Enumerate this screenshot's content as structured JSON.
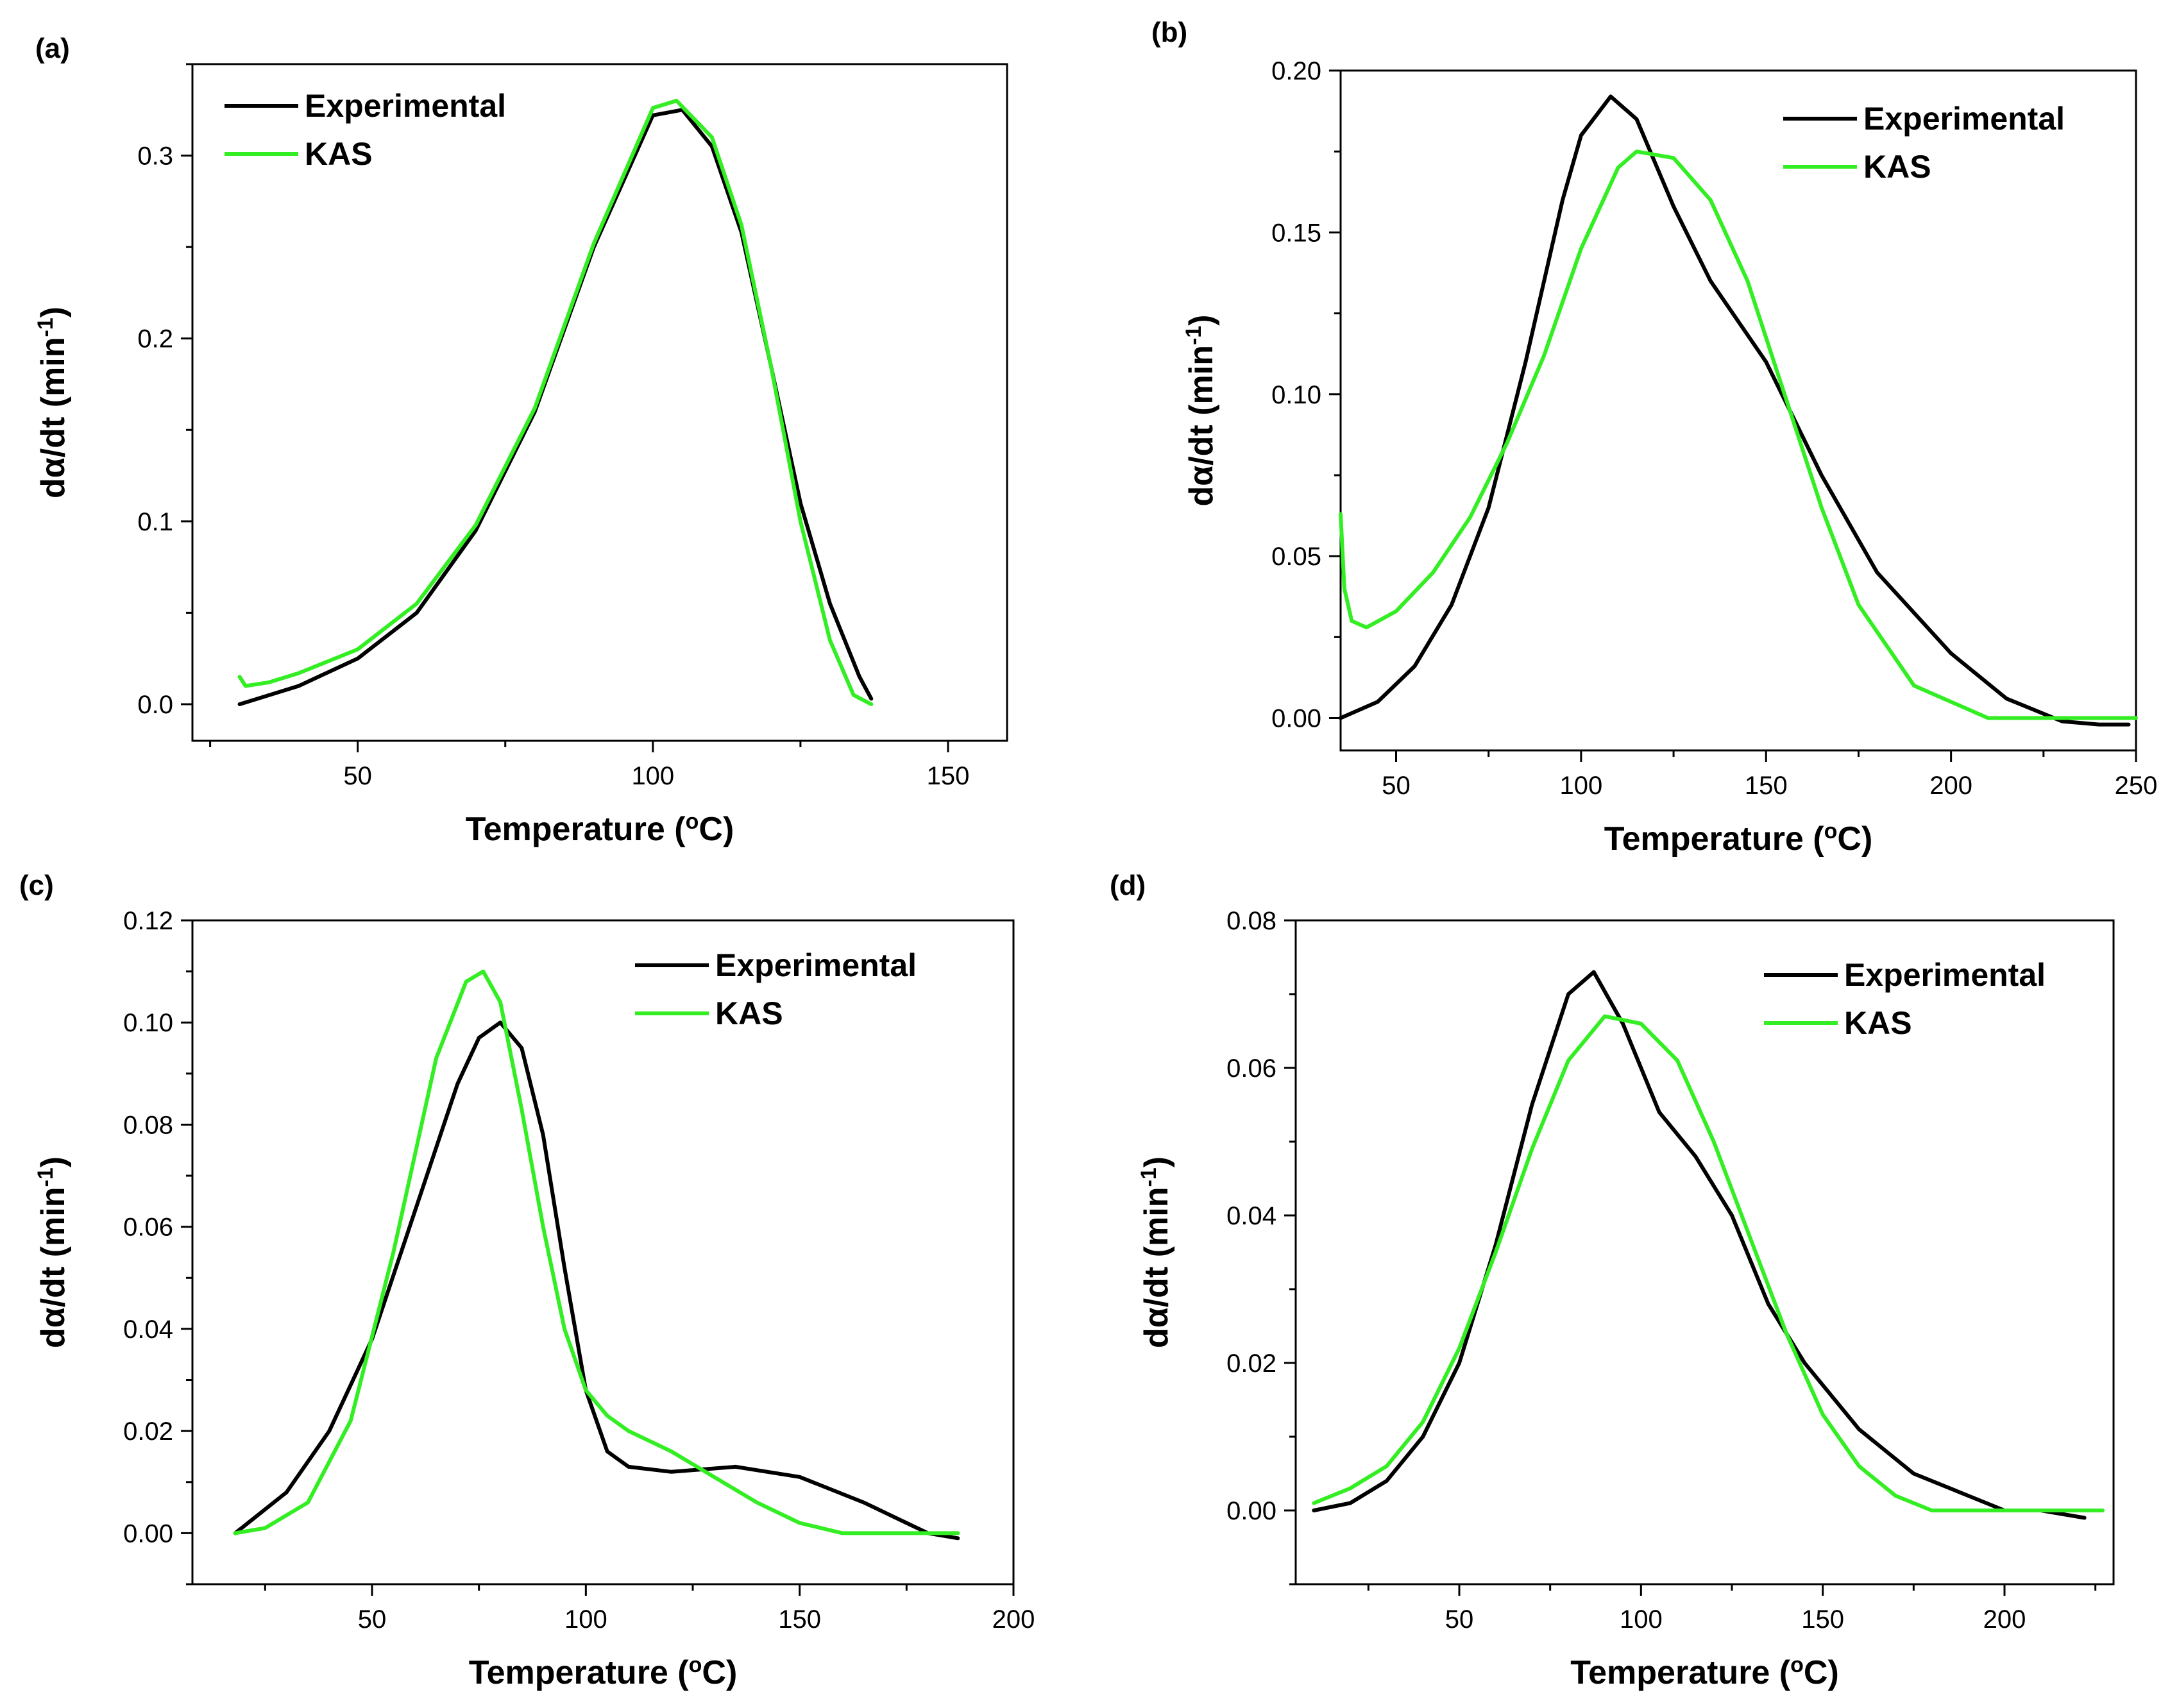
{
  "figure": {
    "panels": [
      {
        "id": "a",
        "label": "(a)",
        "xlabel_main": "Temperature (",
        "xlabel_sup": "o",
        "xlabel_end": "C)",
        "ylabel_main": "dα/dt (min",
        "ylabel_sup": "-1",
        "ylabel_end": ")",
        "legend": [
          "Experimental",
          "KAS"
        ]
      },
      {
        "id": "b",
        "label": "(b)",
        "xlabel_main": "Temperature (",
        "xlabel_sup": "o",
        "xlabel_end": "C)",
        "ylabel_main": "dα/dt (min",
        "ylabel_sup": "-1",
        "ylabel_end": ")",
        "legend": [
          "Experimental",
          "KAS"
        ]
      },
      {
        "id": "c",
        "label": "(c)",
        "xlabel_main": "Temperature (",
        "xlabel_sup": "o",
        "xlabel_end": "C)",
        "ylabel_main": "dα/dt (min",
        "ylabel_sup": "-1",
        "ylabel_end": ")",
        "legend": [
          "Experimental",
          "KAS"
        ]
      },
      {
        "id": "d",
        "label": "(d)",
        "xlabel_main": "Temperature (",
        "xlabel_sup": "o",
        "xlabel_end": "C)",
        "ylabel_main": "dα/dt (min",
        "ylabel_sup": "-1",
        "ylabel_end": ")",
        "legend": [
          "Experimental",
          "KAS"
        ]
      }
    ]
  },
  "colors": {
    "experimental": "#000000",
    "kas": "#33ee22"
  },
  "chart_data": [
    {
      "type": "line",
      "panel": "a",
      "xlabel": "Temperature (°C)",
      "ylabel": "dα/dt (min-1)",
      "xlim": [
        22,
        160
      ],
      "ylim": [
        -0.02,
        0.35
      ],
      "xticks": [
        50,
        100,
        150
      ],
      "yticks": [
        0.0,
        0.1,
        0.2,
        0.3
      ],
      "ytick_labels": [
        "0.0",
        "0.1",
        "0.2",
        "0.3"
      ],
      "legend_position": "top-left",
      "series": [
        {
          "name": "Experimental",
          "x": [
            30,
            40,
            50,
            60,
            70,
            80,
            90,
            100,
            105,
            110,
            115,
            120,
            125,
            130,
            135,
            137
          ],
          "y": [
            0.0,
            0.01,
            0.025,
            0.05,
            0.095,
            0.16,
            0.25,
            0.322,
            0.325,
            0.305,
            0.258,
            0.185,
            0.11,
            0.055,
            0.015,
            0.003
          ]
        },
        {
          "name": "KAS",
          "x": [
            30,
            31,
            35,
            40,
            50,
            60,
            70,
            80,
            90,
            100,
            104,
            110,
            115,
            120,
            125,
            130,
            134,
            137
          ],
          "y": [
            0.015,
            0.01,
            0.012,
            0.017,
            0.03,
            0.055,
            0.098,
            0.162,
            0.252,
            0.326,
            0.33,
            0.31,
            0.262,
            0.185,
            0.1,
            0.035,
            0.005,
            0.0
          ]
        }
      ]
    },
    {
      "type": "line",
      "panel": "b",
      "xlabel": "Temperature (°C)",
      "ylabel": "dα/dt (min-1)",
      "xlim": [
        35,
        250
      ],
      "ylim": [
        -0.01,
        0.2
      ],
      "xticks": [
        50,
        100,
        150,
        200,
        250
      ],
      "yticks": [
        0.0,
        0.05,
        0.1,
        0.15,
        0.2
      ],
      "ytick_labels": [
        "0.00",
        "0.05",
        "0.10",
        "0.15",
        "0.20"
      ],
      "legend_position": "top-right",
      "series": [
        {
          "name": "Experimental",
          "x": [
            35,
            45,
            55,
            65,
            75,
            85,
            95,
            100,
            108,
            115,
            125,
            135,
            150,
            165,
            180,
            200,
            215,
            230,
            240,
            248
          ],
          "y": [
            0.0,
            0.005,
            0.016,
            0.035,
            0.065,
            0.11,
            0.16,
            0.18,
            0.192,
            0.185,
            0.158,
            0.135,
            0.11,
            0.075,
            0.045,
            0.02,
            0.006,
            -0.001,
            -0.002,
            -0.002
          ]
        },
        {
          "name": "KAS",
          "x": [
            35,
            36,
            38,
            42,
            50,
            60,
            70,
            80,
            90,
            100,
            110,
            115,
            125,
            135,
            145,
            155,
            165,
            175,
            190,
            210,
            230,
            250
          ],
          "y": [
            0.063,
            0.04,
            0.03,
            0.028,
            0.033,
            0.045,
            0.062,
            0.085,
            0.112,
            0.145,
            0.17,
            0.175,
            0.173,
            0.16,
            0.135,
            0.1,
            0.065,
            0.035,
            0.01,
            0.0,
            0.0,
            0.0
          ]
        }
      ]
    },
    {
      "type": "line",
      "panel": "c",
      "xlabel": "Temperature (°C)",
      "ylabel": "dα/dt (min-1)",
      "xlim": [
        8,
        200
      ],
      "ylim": [
        -0.01,
        0.12
      ],
      "xticks": [
        50,
        100,
        150,
        200
      ],
      "yticks": [
        0.0,
        0.02,
        0.04,
        0.06,
        0.08,
        0.1,
        0.12
      ],
      "ytick_labels": [
        "0.00",
        "0.02",
        "0.04",
        "0.06",
        "0.08",
        "0.10",
        "0.12"
      ],
      "legend_position": "top-right",
      "series": [
        {
          "name": "Experimental",
          "x": [
            18,
            30,
            40,
            50,
            60,
            70,
            75,
            80,
            85,
            90,
            95,
            100,
            105,
            110,
            120,
            135,
            150,
            165,
            175,
            180,
            187
          ],
          "y": [
            0.0,
            0.008,
            0.02,
            0.038,
            0.063,
            0.088,
            0.097,
            0.1,
            0.095,
            0.078,
            0.052,
            0.028,
            0.016,
            0.013,
            0.012,
            0.013,
            0.011,
            0.006,
            0.002,
            0.0,
            -0.001
          ]
        },
        {
          "name": "KAS",
          "x": [
            18,
            25,
            35,
            45,
            55,
            65,
            72,
            76,
            80,
            85,
            90,
            95,
            100,
            105,
            110,
            120,
            130,
            140,
            150,
            160,
            170,
            187
          ],
          "y": [
            0.0,
            0.001,
            0.006,
            0.022,
            0.055,
            0.093,
            0.108,
            0.11,
            0.104,
            0.083,
            0.06,
            0.04,
            0.028,
            0.023,
            0.02,
            0.016,
            0.011,
            0.006,
            0.002,
            0.0,
            0.0,
            0.0
          ]
        }
      ]
    },
    {
      "type": "line",
      "panel": "d",
      "xlabel": "Temperature (°C)",
      "ylabel": "dα/dt (min-1)",
      "xlim": [
        5,
        230
      ],
      "ylim": [
        -0.01,
        0.08
      ],
      "xticks": [
        50,
        100,
        150,
        200
      ],
      "yticks": [
        0.0,
        0.02,
        0.04,
        0.06,
        0.08
      ],
      "ytick_labels": [
        "0.00",
        "0.02",
        "0.04",
        "0.06",
        "0.08"
      ],
      "legend_position": "top-right",
      "series": [
        {
          "name": "Experimental",
          "x": [
            10,
            20,
            30,
            40,
            50,
            60,
            70,
            80,
            87,
            95,
            105,
            115,
            125,
            135,
            145,
            160,
            175,
            190,
            200,
            210,
            222
          ],
          "y": [
            0.0,
            0.001,
            0.004,
            0.01,
            0.02,
            0.036,
            0.055,
            0.07,
            0.073,
            0.066,
            0.054,
            0.048,
            0.04,
            0.028,
            0.02,
            0.011,
            0.005,
            0.002,
            0.0,
            -0.0,
            -0.001
          ]
        },
        {
          "name": "KAS",
          "x": [
            10,
            20,
            30,
            40,
            50,
            60,
            70,
            80,
            90,
            100,
            110,
            120,
            130,
            140,
            150,
            160,
            170,
            180,
            190,
            200,
            215,
            227
          ],
          "y": [
            0.001,
            0.003,
            0.006,
            0.012,
            0.022,
            0.035,
            0.049,
            0.061,
            0.067,
            0.066,
            0.061,
            0.05,
            0.037,
            0.024,
            0.013,
            0.006,
            0.002,
            0.0,
            0.0,
            0.0,
            0.0,
            0.0
          ]
        }
      ]
    }
  ]
}
